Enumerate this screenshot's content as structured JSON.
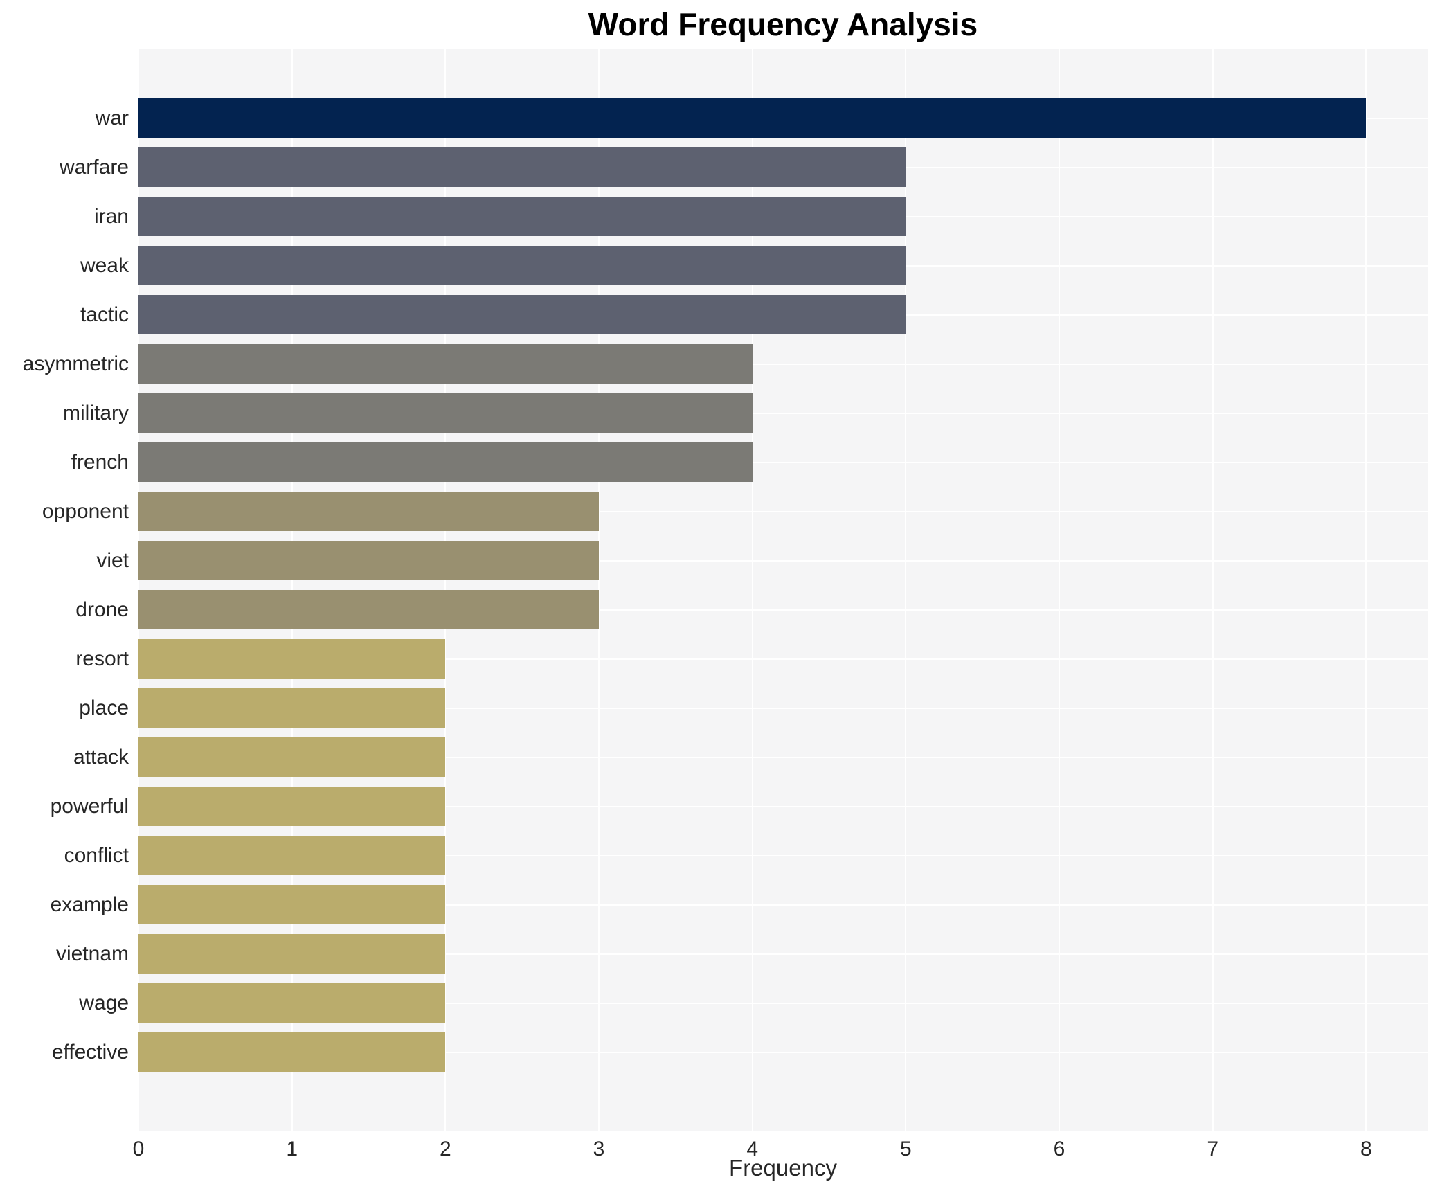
{
  "chart_data": {
    "type": "bar",
    "orientation": "horizontal",
    "title": "Word Frequency Analysis",
    "xlabel": "Frequency",
    "ylabel": "",
    "xlim": [
      0,
      8.4
    ],
    "x_ticks": [
      0,
      1,
      2,
      3,
      4,
      5,
      6,
      7,
      8
    ],
    "grid": true,
    "legend": false,
    "categories": [
      "war",
      "warfare",
      "iran",
      "weak",
      "tactic",
      "asymmetric",
      "military",
      "french",
      "opponent",
      "viet",
      "drone",
      "resort",
      "place",
      "attack",
      "powerful",
      "conflict",
      "example",
      "vietnam",
      "wage",
      "effective"
    ],
    "values": [
      8,
      5,
      5,
      5,
      5,
      4,
      4,
      4,
      3,
      3,
      3,
      2,
      2,
      2,
      2,
      2,
      2,
      2,
      2,
      2
    ],
    "bar_colors": [
      "#032350",
      "#5d6170",
      "#5d6170",
      "#5d6170",
      "#5d6170",
      "#7b7a75",
      "#7b7a75",
      "#7b7a75",
      "#999070",
      "#999070",
      "#999070",
      "#baac6c",
      "#baac6c",
      "#baac6c",
      "#baac6c",
      "#baac6c",
      "#baac6c",
      "#baac6c",
      "#baac6c",
      "#baac6c"
    ]
  },
  "colors": {
    "page_background": "#ffffff",
    "plot_background": "#f5f5f6",
    "gridline": "#ffffff",
    "label_text": "#262626",
    "title_text": "#000000"
  }
}
